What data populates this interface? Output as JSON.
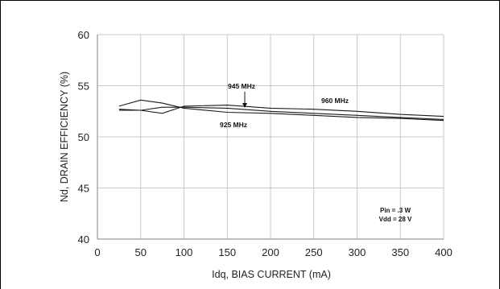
{
  "chart_data": {
    "type": "line",
    "xlabel": "Idq, BIAS CURRENT  (mA)",
    "ylabel": "Nd, DRAIN EFFICIENCY  (%)",
    "xlim": [
      0,
      400
    ],
    "ylim": [
      40,
      60
    ],
    "xticks": [
      "0",
      "50",
      "100",
      "150",
      "200",
      "250",
      "300",
      "350",
      "400"
    ],
    "yticks": [
      "40",
      "45",
      "50",
      "55",
      "60"
    ],
    "grid": true,
    "series": [
      {
        "name": "925 MHz",
        "x": [
          25,
          50,
          75,
          100,
          150,
          200,
          250,
          300,
          350,
          400
        ],
        "y": [
          53.0,
          53.6,
          53.3,
          52.8,
          52.4,
          52.3,
          52.1,
          51.9,
          51.8,
          51.6
        ]
      },
      {
        "name": "945 MHz",
        "x": [
          25,
          50,
          75,
          100,
          150,
          200,
          250,
          300,
          350,
          400
        ],
        "y": [
          52.7,
          52.6,
          52.9,
          52.9,
          52.8,
          52.5,
          52.3,
          52.1,
          51.9,
          51.7
        ]
      },
      {
        "name": "960 MHz",
        "x": [
          25,
          50,
          75,
          100,
          150,
          200,
          250,
          300,
          350,
          400
        ],
        "y": [
          52.6,
          52.6,
          52.3,
          53.0,
          53.1,
          52.8,
          52.7,
          52.5,
          52.2,
          52.0
        ]
      }
    ],
    "annotations": [
      "945 MHz",
      "960 MHz",
      "925 MHz"
    ],
    "conditions": [
      "Pin = .3 W",
      "Vdd = 28 V"
    ]
  }
}
